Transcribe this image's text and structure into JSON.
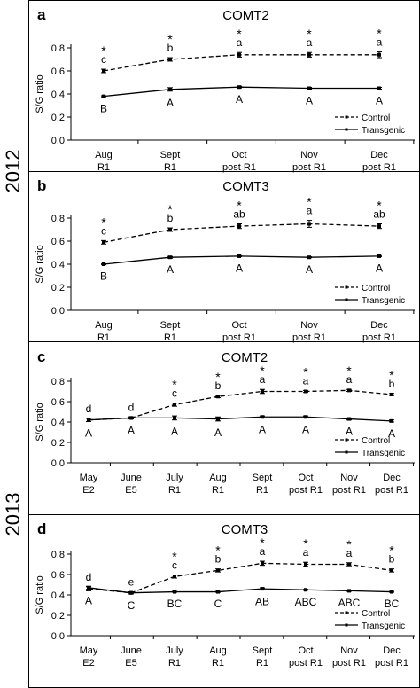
{
  "year_labels": [
    "2012",
    "2013"
  ],
  "chart_data": [
    {
      "type": "line",
      "panel": "a",
      "title": "COMT2",
      "ylabel": "S/G ratio",
      "ylim": [
        0,
        0.8
      ],
      "yticks": [
        "0.0",
        "0.2",
        "0.4",
        "0.6",
        "0.8"
      ],
      "categories": [
        [
          "Aug",
          "R1"
        ],
        [
          "Sept",
          "R1"
        ],
        [
          "Oct",
          "post R1"
        ],
        [
          "Nov",
          "post R1"
        ],
        [
          "Dec",
          "post R1"
        ]
      ],
      "series": [
        {
          "name": "Control",
          "style": "dashed",
          "values": [
            0.6,
            0.7,
            0.74,
            0.74,
            0.74
          ],
          "errors": [
            0.015,
            0.015,
            0.02,
            0.02,
            0.025
          ]
        },
        {
          "name": "Transgenic",
          "style": "solid",
          "values": [
            0.38,
            0.44,
            0.46,
            0.45,
            0.45
          ],
          "errors": [
            0.005,
            0.015,
            0.008,
            0.008,
            0.008
          ]
        }
      ],
      "control_annotations": [
        [
          "*",
          "c"
        ],
        [
          "*",
          "b"
        ],
        [
          "*",
          "a"
        ],
        [
          "*",
          "a"
        ],
        [
          "*",
          "a"
        ]
      ],
      "transgenic_annotations": [
        "B",
        "A",
        "A",
        "A",
        "A"
      ],
      "legend_position": "lower-right"
    },
    {
      "type": "line",
      "panel": "b",
      "title": "COMT3",
      "ylabel": "S/G ratio",
      "ylim": [
        0,
        0.8
      ],
      "yticks": [
        "0.0",
        "0.2",
        "0.4",
        "0.6",
        "0.8"
      ],
      "categories": [
        [
          "Aug",
          "R1"
        ],
        [
          "Sept",
          "R1"
        ],
        [
          "Oct",
          "post R1"
        ],
        [
          "Nov",
          "post R1"
        ],
        [
          "Dec",
          "post R1"
        ]
      ],
      "series": [
        {
          "name": "Control",
          "style": "dashed",
          "values": [
            0.59,
            0.7,
            0.73,
            0.75,
            0.73
          ],
          "errors": [
            0.015,
            0.015,
            0.02,
            0.03,
            0.02
          ]
        },
        {
          "name": "Transgenic",
          "style": "solid",
          "values": [
            0.4,
            0.46,
            0.47,
            0.46,
            0.47
          ],
          "errors": [
            0.005,
            0.008,
            0.005,
            0.005,
            0.005
          ]
        }
      ],
      "control_annotations": [
        [
          "*",
          "c"
        ],
        [
          "*",
          "b"
        ],
        [
          "*",
          "ab"
        ],
        [
          "*",
          "a"
        ],
        [
          "*",
          "ab"
        ]
      ],
      "transgenic_annotations": [
        "B",
        "A",
        "A",
        "A",
        "A"
      ],
      "legend_position": "lower-right"
    },
    {
      "type": "line",
      "panel": "c",
      "title": "COMT2",
      "ylabel": "S/G ratio",
      "ylim": [
        0,
        0.8
      ],
      "yticks": [
        "0.0",
        "0.2",
        "0.4",
        "0.6",
        "0.8"
      ],
      "categories": [
        [
          "May",
          "E2"
        ],
        [
          "June",
          "E5"
        ],
        [
          "July",
          "R1"
        ],
        [
          "Aug",
          "R1"
        ],
        [
          "Sept",
          "R1"
        ],
        [
          "Oct",
          "post R1"
        ],
        [
          "Nov",
          "post R1"
        ],
        [
          "Dec",
          "post R1"
        ]
      ],
      "series": [
        {
          "name": "Control",
          "style": "dashed",
          "values": [
            0.42,
            0.44,
            0.57,
            0.65,
            0.7,
            0.7,
            0.71,
            0.67
          ],
          "errors": [
            0.015,
            0.01,
            0.015,
            0.01,
            0.02,
            0.01,
            0.01,
            0.01
          ]
        },
        {
          "name": "Transgenic",
          "style": "solid",
          "values": [
            0.42,
            0.44,
            0.44,
            0.43,
            0.45,
            0.45,
            0.43,
            0.41
          ],
          "errors": [
            0.015,
            0.01,
            0.02,
            0.02,
            0.01,
            0.01,
            0.01,
            0.01
          ]
        }
      ],
      "control_annotations": [
        [
          "",
          "d"
        ],
        [
          "",
          "d"
        ],
        [
          "*",
          "c"
        ],
        [
          "*",
          "b"
        ],
        [
          "*",
          "a"
        ],
        [
          "*",
          "a"
        ],
        [
          "*",
          "a"
        ],
        [
          "*",
          "b"
        ]
      ],
      "transgenic_annotations": [
        "A",
        "A",
        "A",
        "A",
        "A",
        "A",
        "A",
        "A"
      ],
      "legend_position": "lower-right"
    },
    {
      "type": "line",
      "panel": "d",
      "title": "COMT3",
      "ylabel": "S/G ratio",
      "ylim": [
        0,
        0.8
      ],
      "yticks": [
        "0.0",
        "0.2",
        "0.4",
        "0.6",
        "0.8"
      ],
      "categories": [
        [
          "May",
          "E2"
        ],
        [
          "June",
          "E5"
        ],
        [
          "July",
          "R1"
        ],
        [
          "Aug",
          "R1"
        ],
        [
          "Sept",
          "R1"
        ],
        [
          "Oct",
          "post R1"
        ],
        [
          "Nov",
          "post R1"
        ],
        [
          "Dec",
          "post R1"
        ]
      ],
      "series": [
        {
          "name": "Control",
          "style": "dashed",
          "values": [
            0.46,
            0.42,
            0.58,
            0.64,
            0.71,
            0.7,
            0.7,
            0.64
          ],
          "errors": [
            0.02,
            0.01,
            0.015,
            0.015,
            0.02,
            0.02,
            0.015,
            0.015
          ]
        },
        {
          "name": "Transgenic",
          "style": "solid",
          "values": [
            0.47,
            0.42,
            0.43,
            0.43,
            0.46,
            0.45,
            0.44,
            0.43
          ],
          "errors": [
            0.015,
            0.01,
            0.005,
            0.005,
            0.01,
            0.005,
            0.005,
            0.005
          ]
        }
      ],
      "control_annotations": [
        [
          "",
          "d"
        ],
        [
          "",
          "e"
        ],
        [
          "*",
          "c"
        ],
        [
          "*",
          "b"
        ],
        [
          "*",
          "a"
        ],
        [
          "*",
          "a"
        ],
        [
          "*",
          "a"
        ],
        [
          "*",
          "b"
        ]
      ],
      "transgenic_annotations": [
        "A",
        "C",
        "BC",
        "C",
        "AB",
        "ABC",
        "ABC",
        "BC"
      ],
      "legend_position": "lower-right"
    }
  ]
}
